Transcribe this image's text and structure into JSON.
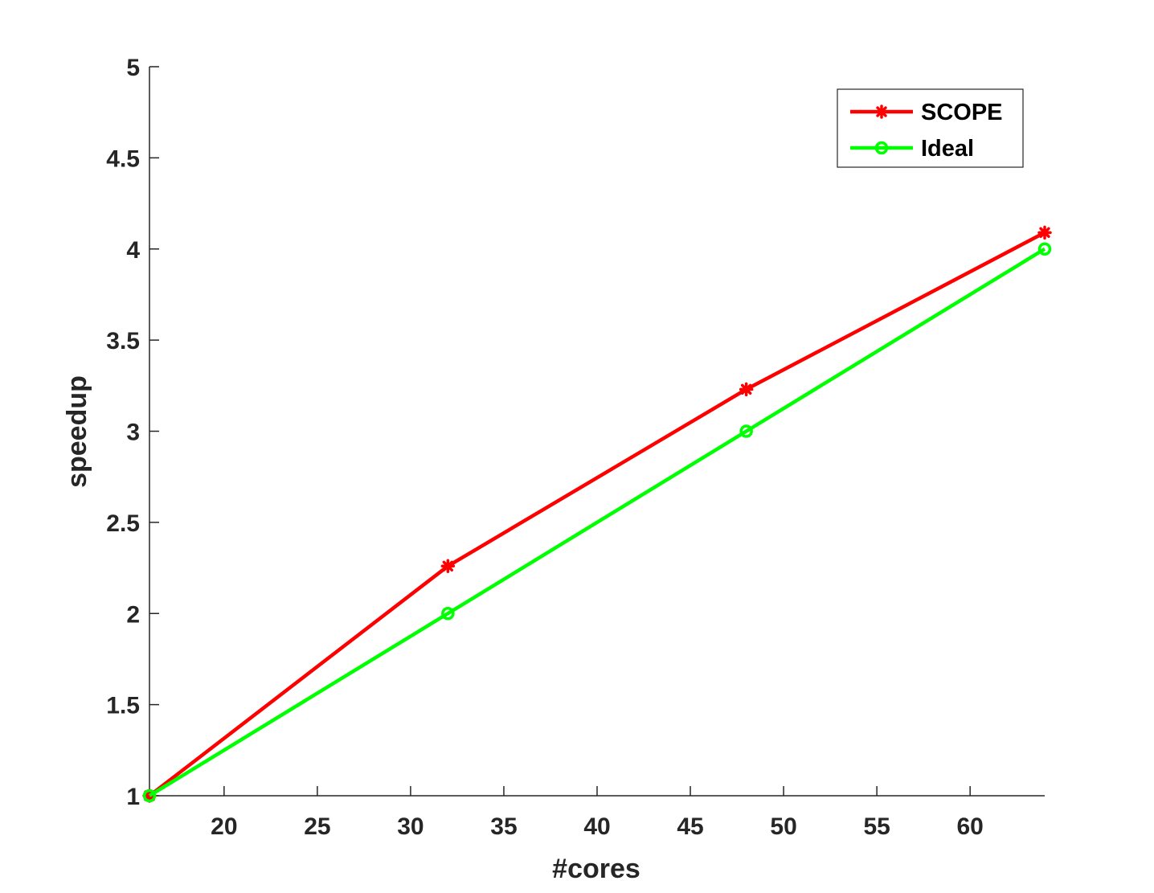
{
  "chart_data": {
    "type": "line",
    "xlabel": "#cores",
    "ylabel": "speedup",
    "xlim": [
      16,
      64
    ],
    "ylim": [
      1,
      5
    ],
    "xticks": [
      20,
      25,
      30,
      35,
      40,
      45,
      50,
      55,
      60
    ],
    "yticks": [
      1,
      1.5,
      2,
      2.5,
      3,
      3.5,
      4,
      4.5,
      5
    ],
    "xtick_labels": [
      "20",
      "25",
      "30",
      "35",
      "40",
      "45",
      "50",
      "55",
      "60"
    ],
    "ytick_labels": [
      "1",
      "1.5",
      "2",
      "2.5",
      "3",
      "3.5",
      "4",
      "4.5",
      "5"
    ],
    "grid": false,
    "legend_position": "top-right",
    "series": [
      {
        "name": "SCOPE",
        "color": "#ff0000",
        "marker": "asterisk",
        "x": [
          16,
          32,
          48,
          64
        ],
        "y": [
          1.0,
          2.26,
          3.23,
          4.09
        ]
      },
      {
        "name": "Ideal",
        "color": "#00ff00",
        "marker": "circle",
        "x": [
          16,
          32,
          48,
          64
        ],
        "y": [
          1.0,
          2.0,
          3.0,
          4.0
        ]
      }
    ]
  }
}
